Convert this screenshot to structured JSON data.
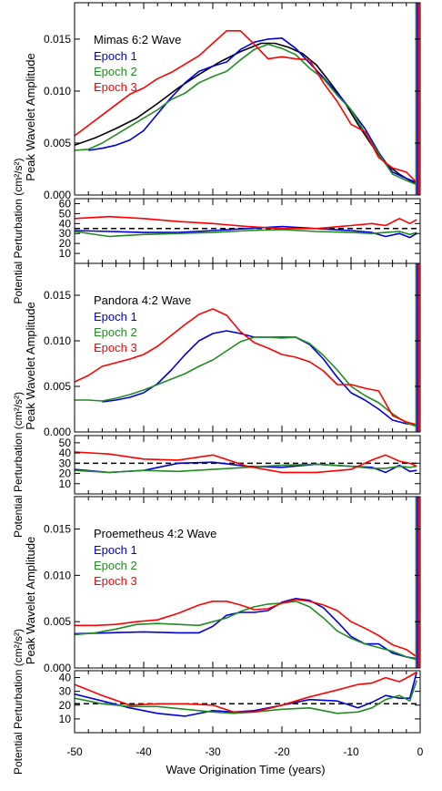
{
  "figure": {
    "xlabel": "Wave Origination Time (years)",
    "x_ticks": [
      "-50",
      "-40",
      "-30",
      "-20",
      "-10",
      "0"
    ]
  },
  "chart_data": [
    {
      "type": "line",
      "title": "Mimas 6:2 Wave",
      "ylabel": "Peak Wavelet Amplitude",
      "xlim": [
        -50,
        0
      ],
      "ylim": [
        0,
        0.0185
      ],
      "y_ticks": [
        "0.000",
        "0.005",
        "0.010",
        "0.015"
      ],
      "y_tick_values": [
        0,
        0.005,
        0.01,
        0.015
      ],
      "legend": "top-left",
      "series": [
        {
          "name": "",
          "color": "#000000",
          "x": [
            -50,
            -47,
            -44,
            -41,
            -38,
            -35,
            -32,
            -29,
            -26,
            -23,
            -21,
            -19,
            -17,
            -15,
            -13,
            -11,
            -9,
            -7,
            -5,
            -3,
            -1.5,
            -0.5
          ],
          "y": [
            0.0048,
            0.0055,
            0.0064,
            0.0074,
            0.0088,
            0.0103,
            0.0116,
            0.0128,
            0.0138,
            0.0146,
            0.0146,
            0.0142,
            0.0136,
            0.0125,
            0.0108,
            0.009,
            0.0068,
            0.0048,
            0.003,
            0.002,
            0.0014,
            0.001
          ]
        },
        {
          "name": "Epoch 1",
          "color": "#0000dd",
          "x": [
            -48,
            -46,
            -44,
            -42,
            -40,
            -38,
            -36,
            -34,
            -32,
            -30,
            -28,
            -26,
            -24,
            -22,
            -20,
            -18,
            -16,
            -14,
            -12,
            -10,
            -8,
            -6,
            -4,
            -2,
            -0.5
          ],
          "y": [
            0.0043,
            0.0045,
            0.0048,
            0.0053,
            0.0062,
            0.0078,
            0.0094,
            0.0108,
            0.0119,
            0.0124,
            0.0128,
            0.014,
            0.0147,
            0.015,
            0.0151,
            0.0141,
            0.0127,
            0.0113,
            0.0098,
            0.0082,
            0.0064,
            0.0041,
            0.0022,
            0.0016,
            0.0012
          ]
        },
        {
          "name": "Epoch 2",
          "color": "#228b22",
          "x": [
            -50,
            -48,
            -46,
            -44,
            -42,
            -40,
            -38,
            -36,
            -34,
            -32,
            -30,
            -28,
            -26,
            -24,
            -22,
            -20,
            -18,
            -16,
            -14,
            -12,
            -10,
            -8,
            -6,
            -4,
            -2,
            -0.5
          ],
          "y": [
            0.0043,
            0.0044,
            0.005,
            0.0058,
            0.0066,
            0.0074,
            0.0082,
            0.0092,
            0.0098,
            0.0108,
            0.0114,
            0.0119,
            0.013,
            0.014,
            0.0145,
            0.0141,
            0.0135,
            0.0122,
            0.0112,
            0.0096,
            0.0082,
            0.006,
            0.004,
            0.002,
            0.0014,
            0.001
          ]
        },
        {
          "name": "Epoch 3",
          "color": "#ff0000",
          "x": [
            -50,
            -48,
            -46,
            -44,
            -42,
            -40,
            -38,
            -36,
            -34,
            -32,
            -30,
            -28,
            -26,
            -24,
            -22,
            -20,
            -18,
            -16,
            -14,
            -12,
            -10,
            -8,
            -6,
            -4,
            -2,
            -0.5
          ],
          "y": [
            0.0057,
            0.0067,
            0.0077,
            0.0087,
            0.0097,
            0.0103,
            0.0112,
            0.0118,
            0.0126,
            0.0134,
            0.0146,
            0.0158,
            0.0158,
            0.0145,
            0.0131,
            0.0133,
            0.0131,
            0.013,
            0.0108,
            0.009,
            0.0068,
            0.0061,
            0.0036,
            0.0026,
            0.0022,
            0.0012
          ]
        }
      ]
    },
    {
      "type": "line",
      "title": "",
      "ylabel": "Potential Perturbation (cm²/s²)",
      "xlim": [
        -50,
        0
      ],
      "ylim": [
        0,
        65
      ],
      "y_ticks": [
        "10",
        "20",
        "30",
        "40",
        "50",
        "60"
      ],
      "y_tick_values": [
        10,
        20,
        30,
        40,
        50,
        60
      ],
      "reference_line": 35,
      "series": [
        {
          "name": "Epoch 1",
          "color": "#0000dd",
          "x": [
            -50,
            -45,
            -40,
            -35,
            -30,
            -25,
            -20,
            -15,
            -10,
            -7,
            -5,
            -3,
            -1.5,
            -0.5
          ],
          "y": [
            33,
            32,
            31,
            31,
            33,
            35,
            37,
            35,
            33,
            31,
            27,
            30,
            26,
            30
          ]
        },
        {
          "name": "Epoch 2",
          "color": "#228b22",
          "x": [
            -50,
            -45,
            -40,
            -35,
            -30,
            -25,
            -20,
            -15,
            -10,
            -7,
            -5,
            -3,
            -1.5,
            -0.5
          ],
          "y": [
            32,
            27,
            29,
            30,
            31,
            33,
            34,
            32,
            31,
            30,
            31,
            32,
            29,
            31
          ]
        },
        {
          "name": "Epoch 3",
          "color": "#ff0000",
          "x": [
            -50,
            -45,
            -40,
            -35,
            -30,
            -25,
            -20,
            -15,
            -10,
            -7,
            -5,
            -3,
            -1.5,
            -0.5
          ],
          "y": [
            45,
            47,
            45,
            42,
            40,
            37,
            35,
            35,
            38,
            40,
            38,
            45,
            40,
            44
          ]
        }
      ]
    },
    {
      "type": "line",
      "title": "Pandora 4:2 Wave",
      "ylabel": "Peak Wavelet Amplitude",
      "xlim": [
        -50,
        0
      ],
      "ylim": [
        0,
        0.0185
      ],
      "y_ticks": [
        "0.000",
        "0.005",
        "0.010",
        "0.015"
      ],
      "y_tick_values": [
        0,
        0.005,
        0.01,
        0.015
      ],
      "legend": "top-left",
      "series": [
        {
          "name": "Epoch 1",
          "color": "#0000dd",
          "x": [
            -46,
            -44,
            -42,
            -40,
            -38,
            -36,
            -34,
            -32,
            -30,
            -28,
            -26,
            -24,
            -22,
            -20,
            -18,
            -16,
            -14,
            -12,
            -10,
            -8,
            -6,
            -4,
            -2,
            -0.5
          ],
          "y": [
            0.0033,
            0.0035,
            0.0038,
            0.0043,
            0.0053,
            0.0068,
            0.0085,
            0.01,
            0.0108,
            0.0111,
            0.0108,
            0.0104,
            0.0104,
            0.0104,
            0.0104,
            0.0096,
            0.008,
            0.006,
            0.0043,
            0.0035,
            0.0025,
            0.0013,
            0.0009,
            0.0008
          ]
        },
        {
          "name": "Epoch 2",
          "color": "#228b22",
          "x": [
            -50,
            -48,
            -46,
            -44,
            -42,
            -40,
            -38,
            -36,
            -34,
            -32,
            -30,
            -28,
            -26,
            -24,
            -22,
            -20,
            -18,
            -16,
            -14,
            -12,
            -10,
            -8,
            -6,
            -4,
            -2,
            -0.5
          ],
          "y": [
            0.0035,
            0.0035,
            0.0034,
            0.0037,
            0.0041,
            0.0046,
            0.0052,
            0.0058,
            0.0064,
            0.0072,
            0.0079,
            0.0089,
            0.0099,
            0.0104,
            0.0104,
            0.0103,
            0.0104,
            0.0097,
            0.0084,
            0.0068,
            0.005,
            0.004,
            0.0032,
            0.002,
            0.001,
            0.0006
          ]
        },
        {
          "name": "Epoch 3",
          "color": "#ff0000",
          "x": [
            -50,
            -48,
            -46,
            -44,
            -42,
            -40,
            -38,
            -36,
            -34,
            -32,
            -30,
            -28,
            -26,
            -24,
            -22,
            -20,
            -18,
            -16,
            -14,
            -12,
            -10,
            -8,
            -6,
            -4,
            -2,
            -0.5
          ],
          "y": [
            0.0055,
            0.0062,
            0.0072,
            0.0076,
            0.008,
            0.0085,
            0.0094,
            0.0106,
            0.0118,
            0.0129,
            0.0135,
            0.0128,
            0.011,
            0.0098,
            0.0092,
            0.0085,
            0.0082,
            0.0077,
            0.0067,
            0.0052,
            0.0052,
            0.0048,
            0.0045,
            0.0018,
            0.0011,
            0.0008
          ]
        }
      ]
    },
    {
      "type": "line",
      "title": "",
      "ylabel": "Potential Perturbation (cm²/s²)",
      "xlim": [
        -50,
        0
      ],
      "ylim": [
        0,
        57
      ],
      "y_ticks": [
        "10",
        "20",
        "30",
        "40",
        "50"
      ],
      "y_tick_values": [
        10,
        20,
        30,
        40,
        50
      ],
      "reference_line": 30,
      "series": [
        {
          "name": "Epoch 1",
          "color": "#0000dd",
          "x": [
            -50,
            -45,
            -40,
            -35,
            -30,
            -25,
            -20,
            -15,
            -10,
            -7,
            -5,
            -3,
            -1.5,
            -0.5
          ],
          "y": [
            24,
            21,
            23,
            30,
            31,
            27,
            26,
            29,
            27,
            26,
            21,
            28,
            22,
            23
          ]
        },
        {
          "name": "Epoch 2",
          "color": "#228b22",
          "x": [
            -50,
            -45,
            -40,
            -35,
            -30,
            -25,
            -20,
            -15,
            -10,
            -7,
            -5,
            -3,
            -1.5,
            -0.5
          ],
          "y": [
            23,
            21,
            23,
            22,
            24,
            26,
            28,
            29,
            27,
            25,
            25,
            27,
            26,
            27
          ]
        },
        {
          "name": "Epoch 3",
          "color": "#ff0000",
          "x": [
            -50,
            -45,
            -40,
            -35,
            -30,
            -25,
            -20,
            -15,
            -10,
            -7,
            -5,
            -3,
            -1.5,
            -0.5
          ],
          "y": [
            41,
            39,
            34,
            33,
            38,
            27,
            21,
            21,
            24,
            33,
            38,
            32,
            30,
            27
          ]
        }
      ]
    },
    {
      "type": "line",
      "title": "Proemetheus 4:2 Wave",
      "ylabel": "Peak Wavelet Amplitude",
      "xlim": [
        -50,
        0
      ],
      "ylim": [
        0,
        0.0185
      ],
      "y_ticks": [
        "0.000",
        "0.005",
        "0.010",
        "0.015"
      ],
      "y_tick_values": [
        0,
        0.005,
        0.01,
        0.015
      ],
      "legend": "top-left",
      "series": [
        {
          "name": "Epoch 1",
          "color": "#0000dd",
          "x": [
            -50,
            -45,
            -40,
            -35,
            -32,
            -30,
            -28,
            -26,
            -24,
            -22,
            -20,
            -18,
            -16,
            -14,
            -12,
            -10,
            -8,
            -6,
            -4,
            -2,
            -0.5
          ],
          "y": [
            0.0037,
            0.0038,
            0.0039,
            0.0038,
            0.0038,
            0.0045,
            0.0057,
            0.006,
            0.006,
            0.0062,
            0.0071,
            0.0075,
            0.0073,
            0.0065,
            0.005,
            0.0034,
            0.0026,
            0.0026,
            0.0016,
            0.0012,
            0.001
          ]
        },
        {
          "name": "Epoch 2",
          "color": "#228b22",
          "x": [
            -50,
            -47,
            -44,
            -41,
            -38,
            -35,
            -32,
            -30,
            -28,
            -26,
            -24,
            -22,
            -20,
            -18,
            -16,
            -14,
            -12,
            -10,
            -8,
            -6,
            -4,
            -2,
            -0.5
          ],
          "y": [
            0.0036,
            0.0038,
            0.0042,
            0.0047,
            0.0048,
            0.0047,
            0.0046,
            0.005,
            0.0054,
            0.0061,
            0.0066,
            0.0069,
            0.007,
            0.0072,
            0.0066,
            0.0054,
            0.004,
            0.0032,
            0.0026,
            0.0022,
            0.0018,
            0.0012,
            0.0009
          ]
        },
        {
          "name": "Epoch 3",
          "color": "#ff0000",
          "x": [
            -50,
            -47,
            -44,
            -41,
            -38,
            -35,
            -32,
            -30,
            -28,
            -26,
            -24,
            -22,
            -20,
            -18,
            -16,
            -14,
            -12,
            -10,
            -8,
            -6,
            -4,
            -2,
            -0.5
          ],
          "y": [
            0.0046,
            0.0046,
            0.0047,
            0.005,
            0.0052,
            0.0059,
            0.0068,
            0.0072,
            0.0072,
            0.0068,
            0.0063,
            0.0064,
            0.007,
            0.0074,
            0.0072,
            0.0068,
            0.0062,
            0.005,
            0.0043,
            0.0035,
            0.0025,
            0.002,
            0.0012
          ]
        }
      ]
    },
    {
      "type": "line",
      "title": "",
      "ylabel": "Potential Perturbation (cm²/s²)",
      "xlim": [
        -50,
        0
      ],
      "ylim": [
        0,
        45
      ],
      "y_ticks": [
        "10",
        "20",
        "30",
        "40"
      ],
      "y_tick_values": [
        10,
        20,
        30,
        40
      ],
      "reference_line": 21,
      "series": [
        {
          "name": "Epoch 1",
          "color": "#0000dd",
          "x": [
            -50,
            -46,
            -42,
            -38,
            -34,
            -30,
            -27,
            -24,
            -20,
            -16,
            -12,
            -9,
            -7,
            -5,
            -3,
            -1.5,
            -0.5
          ],
          "y": [
            28,
            23,
            18,
            14,
            12,
            16,
            15,
            16,
            20,
            24,
            23,
            18,
            22,
            27,
            25,
            25,
            44
          ]
        },
        {
          "name": "Epoch 2",
          "color": "#228b22",
          "x": [
            -50,
            -46,
            -42,
            -38,
            -34,
            -30,
            -27,
            -24,
            -20,
            -16,
            -12,
            -9,
            -7,
            -5,
            -3,
            -1.5,
            -0.5
          ],
          "y": [
            25,
            21,
            19,
            19,
            17,
            15,
            14,
            15,
            17,
            18,
            14,
            15,
            18,
            24,
            27,
            23,
            38
          ]
        },
        {
          "name": "Epoch 3",
          "color": "#ff0000",
          "x": [
            -50,
            -46,
            -42,
            -38,
            -34,
            -30,
            -27,
            -24,
            -20,
            -16,
            -12,
            -9,
            -7,
            -5,
            -3,
            -1.5,
            -0.5
          ],
          "y": [
            35,
            27,
            20,
            21,
            21,
            20,
            15,
            15,
            20,
            26,
            31,
            35,
            36,
            40,
            37,
            41,
            44
          ]
        }
      ]
    }
  ]
}
